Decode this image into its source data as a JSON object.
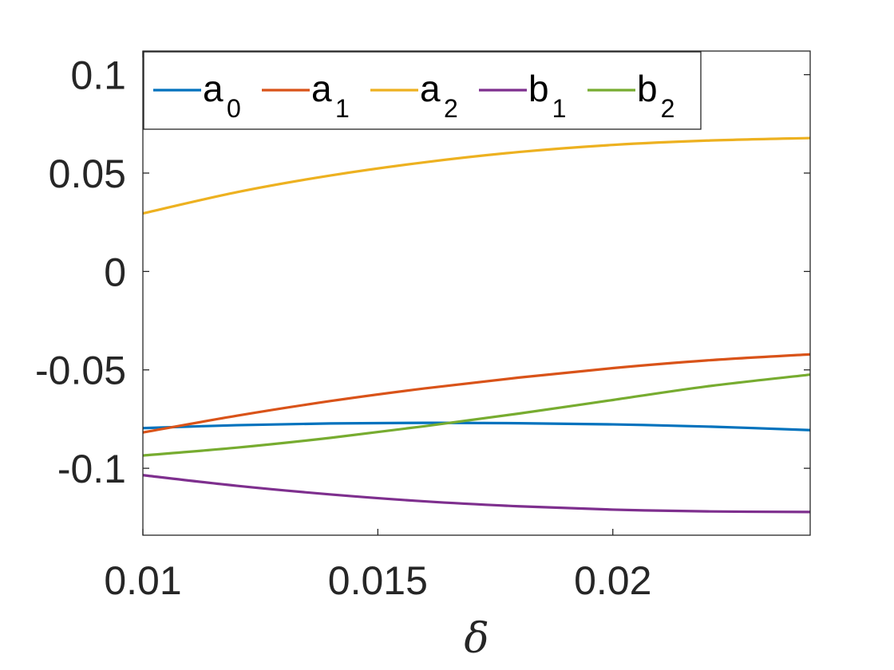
{
  "chart_data": {
    "type": "line",
    "xlabel": "δ",
    "ylabel": "",
    "xlim": [
      0.01,
      0.0242
    ],
    "ylim": [
      -0.134,
      0.112
    ],
    "xticks": [
      "0.01",
      "0.015",
      "0.02"
    ],
    "xtick_values": [
      0.01,
      0.015,
      0.02
    ],
    "yticks": [
      "0.1",
      "0.05",
      "0",
      "-0.05",
      "-0.1"
    ],
    "ytick_values": [
      0.1,
      0.05,
      0,
      -0.05,
      -0.1
    ],
    "grid": false,
    "legend": {
      "placement": "top-left",
      "orientation": "horizontal"
    },
    "x": [
      0.01,
      0.012,
      0.014,
      0.016,
      0.018,
      0.02,
      0.022,
      0.0242
    ],
    "series": [
      {
        "name": "a",
        "subscript": "0",
        "color": "#0072BD",
        "values": [
          -0.0796,
          -0.0781,
          -0.0772,
          -0.0769,
          -0.0771,
          -0.0777,
          -0.0788,
          -0.0806
        ]
      },
      {
        "name": "a",
        "subscript": "1",
        "color": "#D95319",
        "values": [
          -0.0818,
          -0.0733,
          -0.0658,
          -0.0594,
          -0.0539,
          -0.0491,
          -0.0452,
          -0.0421
        ]
      },
      {
        "name": "a",
        "subscript": "2",
        "color": "#EDB120",
        "values": [
          0.0295,
          0.0403,
          0.0488,
          0.0555,
          0.0607,
          0.0643,
          0.0665,
          0.0678
        ]
      },
      {
        "name": "b",
        "subscript": "1",
        "color": "#7E2F8E",
        "values": [
          -0.1035,
          -0.1089,
          -0.1133,
          -0.1168,
          -0.1193,
          -0.121,
          -0.1219,
          -0.1222
        ]
      },
      {
        "name": "b",
        "subscript": "2",
        "color": "#77AC30",
        "values": [
          -0.0935,
          -0.0895,
          -0.0845,
          -0.0786,
          -0.0722,
          -0.0653,
          -0.0584,
          -0.0524
        ]
      }
    ]
  }
}
